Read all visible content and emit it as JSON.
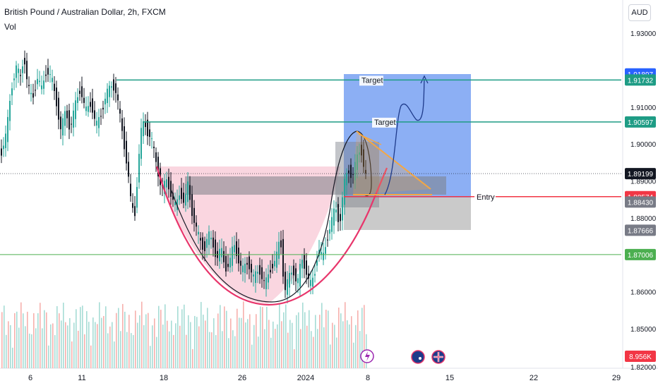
{
  "header": {
    "title": "British Pound / Australian Dollar, 2h, FXCM",
    "volume_label": "Vol",
    "currency_button": "AUD"
  },
  "annotations": {
    "target_upper": "Target",
    "target_lower": "Target",
    "entry": "Entry"
  },
  "colors": {
    "up": "#26a69a",
    "down": "#131722",
    "vol_up": "#a6dcd5",
    "vol_down": "#f6b0ad",
    "target_zone": "#5b8def",
    "pink_zone": "#f8c8d6",
    "cup_line": "#e8356b",
    "teal_line": "#1e9c85",
    "red_line": "#f23645",
    "green_line": "#4caf50",
    "orange": "#f5a742"
  },
  "chart_data": {
    "type": "candlestick",
    "symbol": "GBPAUD",
    "interval": "2h",
    "x_ticks": [
      "6",
      "11",
      "18",
      "26",
      "2024",
      "8",
      "15",
      "22",
      "29"
    ],
    "y_ticks": [
      "1.93000",
      "1.91000",
      "1.90000",
      "1.89000",
      "1.88000",
      "1.86000",
      "1.85000"
    ],
    "y_range": [
      1.842,
      1.936
    ],
    "current_price": "1.89199",
    "levels": [
      {
        "label": "1.91897",
        "price": 1.91897,
        "bg": "#2962ff",
        "fg": "#ffffff"
      },
      {
        "label": "1.91732",
        "price": 1.91732,
        "bg": "#1e9c85",
        "fg": "#ffffff"
      },
      {
        "label": "1.90597",
        "price": 1.90597,
        "bg": "#1e9c85",
        "fg": "#ffffff"
      },
      {
        "label": "1.89199",
        "price": 1.89199,
        "bg": "#131722",
        "fg": "#ffffff"
      },
      {
        "label": "1.88574",
        "price": 1.88574,
        "bg": "#f23645",
        "fg": "#ffffff"
      },
      {
        "label": "1.88430",
        "price": 1.8843,
        "bg": "#787b86",
        "fg": "#ffffff"
      },
      {
        "label": "1.87666",
        "price": 1.87666,
        "bg": "#787b86",
        "fg": "#ffffff"
      },
      {
        "label": "1.87006",
        "price": 1.87006,
        "bg": "#4caf50",
        "fg": "#ffffff"
      }
    ],
    "volume_value": "8.956K",
    "bottom_partial_tick": "1.82000",
    "price_path": [
      [
        0,
        1.897
      ],
      [
        8,
        1.903
      ],
      [
        15,
        1.915
      ],
      [
        22,
        1.921
      ],
      [
        28,
        1.918
      ],
      [
        33,
        1.924
      ],
      [
        38,
        1.916
      ],
      [
        45,
        1.912
      ],
      [
        52,
        1.918
      ],
      [
        58,
        1.915
      ],
      [
        65,
        1.92
      ],
      [
        72,
        1.918
      ],
      [
        78,
        1.912
      ],
      [
        85,
        1.904
      ],
      [
        92,
        1.909
      ],
      [
        98,
        1.904
      ],
      [
        106,
        1.911
      ],
      [
        113,
        1.915
      ],
      [
        120,
        1.909
      ],
      [
        128,
        1.911
      ],
      [
        135,
        1.905
      ],
      [
        142,
        1.908
      ],
      [
        150,
        1.914
      ],
      [
        158,
        1.916
      ],
      [
        164,
        1.914
      ],
      [
        170,
        1.906
      ],
      [
        176,
        1.898
      ],
      [
        180,
        1.893
      ],
      [
        185,
        1.883
      ],
      [
        190,
        1.881
      ],
      [
        194,
        1.892
      ],
      [
        198,
        1.903
      ],
      [
        203,
        1.906
      ],
      [
        208,
        1.903
      ],
      [
        213,
        1.902
      ],
      [
        218,
        1.897
      ],
      [
        223,
        1.892
      ],
      [
        228,
        1.888
      ],
      [
        235,
        1.89
      ],
      [
        242,
        1.886
      ],
      [
        248,
        1.883
      ],
      [
        254,
        1.887
      ],
      [
        260,
        1.884
      ],
      [
        265,
        1.889
      ],
      [
        270,
        1.882
      ],
      [
        276,
        1.878
      ],
      [
        282,
        1.874
      ],
      [
        288,
        1.871
      ],
      [
        294,
        1.876
      ],
      [
        300,
        1.873
      ],
      [
        306,
        1.869
      ],
      [
        312,
        1.872
      ],
      [
        318,
        1.866
      ],
      [
        324,
        1.868
      ],
      [
        330,
        1.873
      ],
      [
        336,
        1.869
      ],
      [
        342,
        1.866
      ],
      [
        350,
        1.868
      ],
      [
        358,
        1.864
      ],
      [
        366,
        1.866
      ],
      [
        374,
        1.862
      ],
      [
        382,
        1.866
      ],
      [
        390,
        1.869
      ],
      [
        396,
        1.875
      ],
      [
        402,
        1.86
      ],
      [
        408,
        1.864
      ],
      [
        414,
        1.866
      ],
      [
        420,
        1.862
      ],
      [
        426,
        1.869
      ],
      [
        432,
        1.866
      ],
      [
        438,
        1.862
      ],
      [
        444,
        1.864
      ],
      [
        450,
        1.872
      ],
      [
        456,
        1.869
      ],
      [
        462,
        1.874
      ],
      [
        468,
        1.879
      ],
      [
        474,
        1.883
      ],
      [
        480,
        1.878
      ],
      [
        486,
        1.889
      ],
      [
        492,
        1.893
      ],
      [
        498,
        1.891
      ],
      [
        504,
        1.896
      ],
      [
        510,
        1.899
      ],
      [
        515,
        1.893
      ],
      [
        520,
        1.889
      ]
    ]
  }
}
